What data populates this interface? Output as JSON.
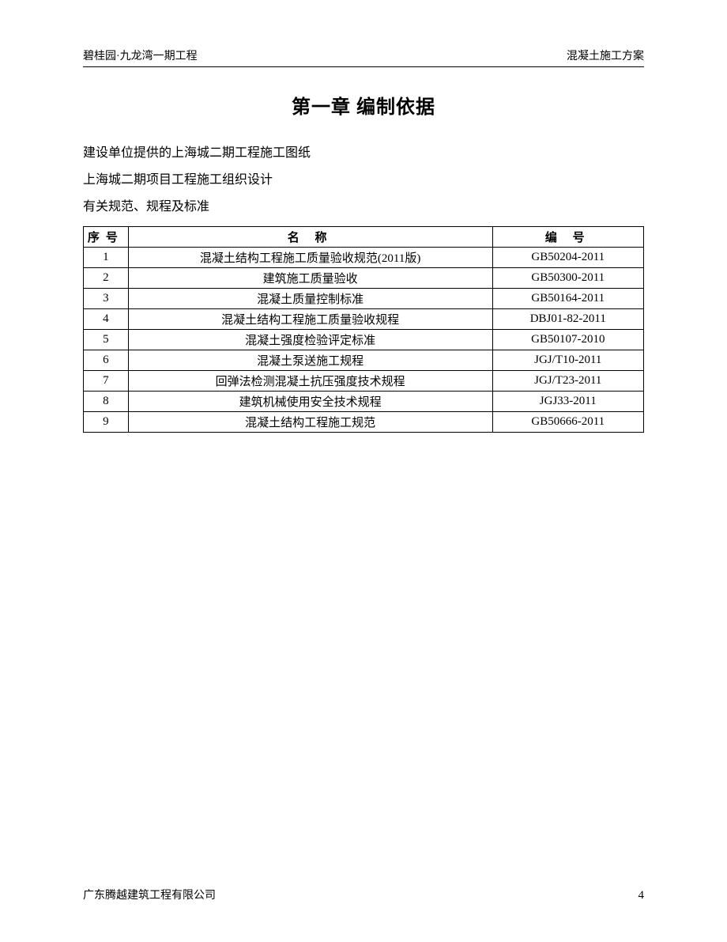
{
  "header": {
    "left": "碧桂园·九龙湾一期工程",
    "right": "混凝土施工方案"
  },
  "title": "第一章  编制依据",
  "body_lines": [
    "建设单位提供的上海城二期工程施工图纸",
    "上海城二期项目工程施工组织设计",
    "有关规范、规程及标准"
  ],
  "table": {
    "columns": [
      {
        "key": "seq",
        "label": "序号"
      },
      {
        "key": "name",
        "label": "名 称"
      },
      {
        "key": "code",
        "label": "编  号"
      }
    ],
    "rows": [
      [
        "1",
        "混凝土结构工程施工质量验收规范(2011版)",
        "GB50204-2011"
      ],
      [
        "2",
        "建筑施工质量验收",
        "GB50300-2011"
      ],
      [
        "3",
        "混凝土质量控制标准",
        "GB50164-2011"
      ],
      [
        "4",
        "混凝土结构工程施工质量验收规程",
        "DBJ01-82-2011"
      ],
      [
        "5",
        "混凝土强度检验评定标准",
        "GB50107-2010"
      ],
      [
        "6",
        "混凝土泵送施工规程",
        "JGJ/T10-2011"
      ],
      [
        "7",
        "回弹法检测混凝土抗压强度技术规程",
        "JGJ/T23-2011"
      ],
      [
        "8",
        "建筑机械使用安全技术规程",
        "JGJ33-2011"
      ],
      [
        "9",
        "混凝土结构工程施工规范",
        "GB50666-2011"
      ]
    ]
  },
  "footer": {
    "left": "广东腾越建筑工程有限公司",
    "page_number": "4"
  }
}
